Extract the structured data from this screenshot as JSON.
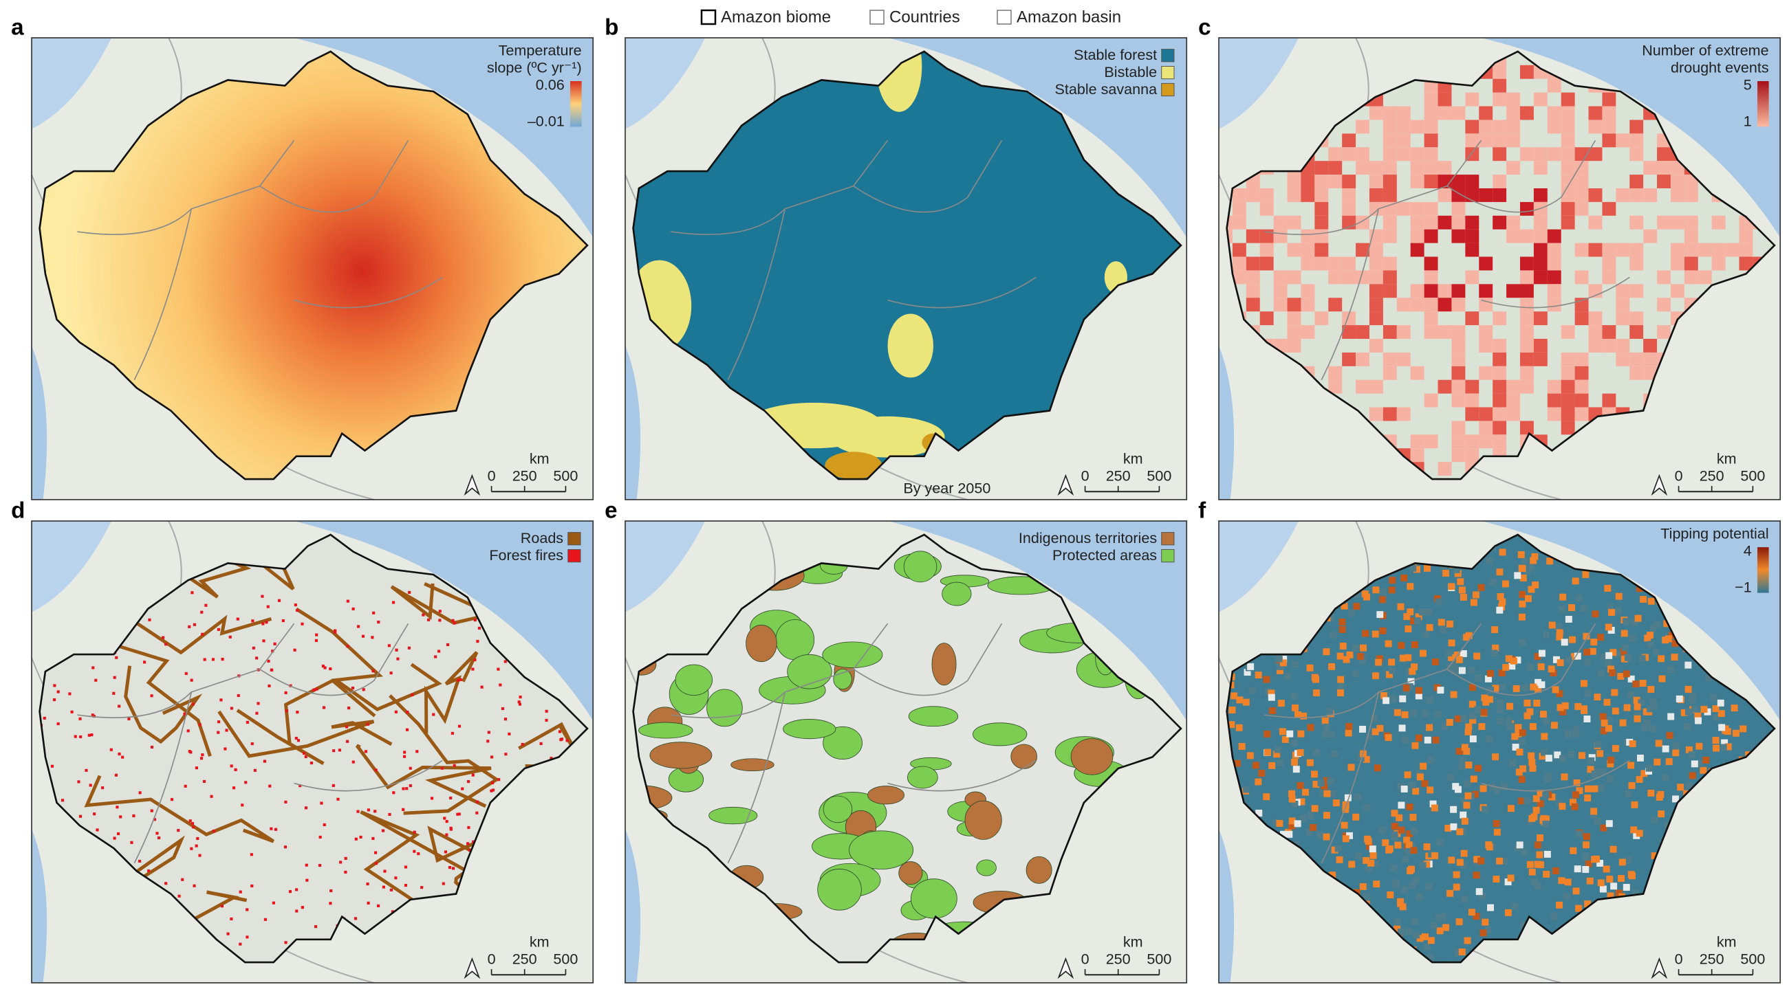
{
  "legend": {
    "items": [
      "Amazon biome",
      "Countries",
      "Amazon basin"
    ]
  },
  "panels": [
    {
      "letter": "a",
      "legend_title": [
        "Temperature",
        "slope (ºC yr⁻¹)"
      ],
      "colorbar": [
        "0.06",
        "–0.01"
      ],
      "scale": {
        "unit": "km",
        "ticks": [
          "0",
          "250",
          "500"
        ]
      }
    },
    {
      "letter": "b",
      "entries": [
        {
          "label": "Stable forest",
          "color": "#1b7795"
        },
        {
          "label": "Bistable",
          "color": "#ece67a"
        },
        {
          "label": "Stable savanna",
          "color": "#d49a1c"
        }
      ],
      "caption": "By year 2050",
      "scale": {
        "unit": "km",
        "ticks": [
          "0",
          "250",
          "500"
        ]
      }
    },
    {
      "letter": "c",
      "legend_title": [
        "Number of extreme",
        "drought events"
      ],
      "colorbar": [
        "5",
        "1"
      ],
      "scale": {
        "unit": "km",
        "ticks": [
          "0",
          "250",
          "500"
        ]
      }
    },
    {
      "letter": "d",
      "entries": [
        {
          "label": "Roads",
          "color": "#9a5a16"
        },
        {
          "label": "Forest fires",
          "color": "#e8141c"
        }
      ],
      "scale": {
        "unit": "km",
        "ticks": [
          "0",
          "250",
          "500"
        ]
      }
    },
    {
      "letter": "e",
      "entries": [
        {
          "label": "Indigenous territories",
          "color": "#b8733c"
        },
        {
          "label": "Protected areas",
          "color": "#7ccd52"
        }
      ],
      "scale": {
        "unit": "km",
        "ticks": [
          "0",
          "250",
          "500"
        ]
      }
    },
    {
      "letter": "f",
      "legend_title": [
        "Tipping potential"
      ],
      "colorbar": [
        "4",
        "−1"
      ],
      "scale": {
        "unit": "km",
        "ticks": [
          "0",
          "250",
          "500"
        ]
      }
    }
  ]
}
